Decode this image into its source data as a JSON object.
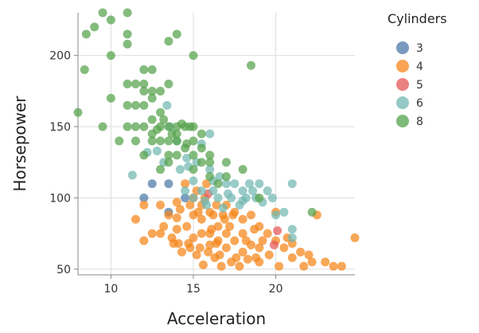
{
  "chart_data": {
    "type": "scatter",
    "title": "",
    "xlabel": "Acceleration",
    "ylabel": "Horsepower",
    "xlim": [
      8,
      24.8
    ],
    "ylim": [
      46,
      230
    ],
    "xticks": [
      10,
      15,
      20
    ],
    "yticks": [
      50,
      100,
      150,
      200
    ],
    "grid": true,
    "legend": {
      "title": "Cylinders",
      "position": "right"
    },
    "colors": {
      "3": "#4c78a8",
      "4": "#f58518",
      "5": "#e45756",
      "6": "#72b7b2",
      "8": "#54a24b"
    },
    "series": [
      {
        "name": "3",
        "color": "#4c78a8",
        "points": [
          [
            12.5,
            110
          ],
          [
            13.5,
            110
          ],
          [
            14.5,
            100
          ],
          [
            12,
            100
          ],
          [
            13.5,
            90
          ]
        ]
      },
      {
        "name": "4",
        "color": "#f58518",
        "points": [
          [
            11.5,
            85
          ],
          [
            12,
            70
          ],
          [
            12.5,
            75
          ],
          [
            13,
            75
          ],
          [
            13,
            95
          ],
          [
            13.5,
            88
          ],
          [
            14,
            97
          ],
          [
            14,
            86
          ],
          [
            14.2,
            92
          ],
          [
            14.5,
            110
          ],
          [
            14.6,
            80
          ],
          [
            14.8,
            95
          ],
          [
            15,
            100
          ],
          [
            15,
            88
          ],
          [
            15,
            72
          ],
          [
            15.2,
            105
          ],
          [
            15.3,
            90
          ],
          [
            15.5,
            95
          ],
          [
            15.5,
            75
          ],
          [
            15.5,
            85
          ],
          [
            15.7,
            100
          ],
          [
            15.8,
            110
          ],
          [
            16,
            90
          ],
          [
            16,
            75
          ],
          [
            16,
            67
          ],
          [
            16.2,
            88
          ],
          [
            16.4,
            95
          ],
          [
            16.5,
            80
          ],
          [
            16.5,
            70
          ],
          [
            16.6,
            60
          ],
          [
            16.8,
            88
          ],
          [
            17,
            95
          ],
          [
            17,
            75
          ],
          [
            17,
            65
          ],
          [
            17.2,
            80
          ],
          [
            17.5,
            90
          ],
          [
            17.5,
            70
          ],
          [
            17.6,
            58
          ],
          [
            18,
            85
          ],
          [
            18,
            75
          ],
          [
            18,
            62
          ],
          [
            18.2,
            70
          ],
          [
            18.5,
            88
          ],
          [
            18.5,
            67
          ],
          [
            18.7,
            78
          ],
          [
            19,
            80
          ],
          [
            19,
            65
          ],
          [
            19,
            55
          ],
          [
            19.2,
            70
          ],
          [
            19.5,
            75
          ],
          [
            19.6,
            60
          ],
          [
            20,
            90
          ],
          [
            20,
            70
          ],
          [
            20.2,
            52
          ],
          [
            20.5,
            65
          ],
          [
            20.7,
            72
          ],
          [
            21,
            68
          ],
          [
            21,
            58
          ],
          [
            21.5,
            62
          ],
          [
            21.7,
            52
          ],
          [
            22,
            60
          ],
          [
            22.2,
            55
          ],
          [
            22.5,
            88
          ],
          [
            23,
            55
          ],
          [
            23.5,
            52
          ],
          [
            24,
            52
          ],
          [
            24.8,
            72
          ],
          [
            12,
            95
          ],
          [
            13.2,
            80
          ],
          [
            13.8,
            68
          ],
          [
            14,
            78
          ],
          [
            14.3,
            62
          ],
          [
            14.7,
            68
          ],
          [
            15.4,
            65
          ],
          [
            15.9,
            62
          ],
          [
            16.3,
            58
          ],
          [
            16.7,
            52
          ],
          [
            17.3,
            55
          ],
          [
            17.8,
            52
          ],
          [
            18.3,
            57
          ],
          [
            18.8,
            58
          ],
          [
            14.8,
            65
          ],
          [
            15.2,
            60
          ],
          [
            16.1,
            78
          ],
          [
            16.9,
            85
          ],
          [
            17.4,
            88
          ],
          [
            13.7,
            72
          ],
          [
            14.1,
            68
          ],
          [
            15.6,
            53
          ],
          [
            16.4,
            68
          ]
        ]
      },
      {
        "name": "5",
        "color": "#e45756",
        "points": [
          [
            15.9,
            103
          ],
          [
            19.9,
            67
          ],
          [
            20.1,
            77
          ]
        ]
      },
      {
        "name": "6",
        "color": "#72b7b2",
        "points": [
          [
            11.3,
            116
          ],
          [
            12.2,
            132
          ],
          [
            12.8,
            133
          ],
          [
            13.2,
            125
          ],
          [
            13.4,
            165
          ],
          [
            13.6,
            150
          ],
          [
            14,
            140
          ],
          [
            14.2,
            120
          ],
          [
            14.5,
            105
          ],
          [
            14.6,
            128
          ],
          [
            15,
            100
          ],
          [
            15,
            112
          ],
          [
            15.2,
            125
          ],
          [
            15.5,
            105
          ],
          [
            15.7,
            98
          ],
          [
            16,
            120
          ],
          [
            16.2,
            112
          ],
          [
            16.5,
            100
          ],
          [
            16.8,
            93
          ],
          [
            17,
            110
          ],
          [
            17.3,
            100
          ],
          [
            17.5,
            110
          ],
          [
            17.8,
            95
          ],
          [
            18,
            105
          ],
          [
            18.2,
            100
          ],
          [
            18.4,
            110
          ],
          [
            18.6,
            105
          ],
          [
            18.8,
            100
          ],
          [
            19,
            110
          ],
          [
            19.2,
            97
          ],
          [
            19.5,
            105
          ],
          [
            19.8,
            100
          ],
          [
            20,
            88
          ],
          [
            20.5,
            90
          ],
          [
            21,
            110
          ],
          [
            21,
            78
          ],
          [
            21,
            72
          ],
          [
            16,
            145
          ],
          [
            15.5,
            138
          ],
          [
            14.7,
            122
          ],
          [
            16.6,
            115
          ],
          [
            17.1,
            103
          ],
          [
            18,
            98
          ],
          [
            16.2,
            105
          ],
          [
            15.8,
            95
          ]
        ]
      },
      {
        "name": "8",
        "color": "#54a24b",
        "points": [
          [
            8,
            160
          ],
          [
            8.4,
            190
          ],
          [
            8.5,
            215
          ],
          [
            9,
            220
          ],
          [
            9.5,
            150
          ],
          [
            9.5,
            230
          ],
          [
            10,
            225
          ],
          [
            10,
            200
          ],
          [
            10,
            170
          ],
          [
            10.5,
            140
          ],
          [
            11,
            230
          ],
          [
            11,
            215
          ],
          [
            11,
            208
          ],
          [
            11,
            180
          ],
          [
            11,
            165
          ],
          [
            11,
            150
          ],
          [
            11.5,
            180
          ],
          [
            11.5,
            165
          ],
          [
            11.5,
            150
          ],
          [
            11.5,
            140
          ],
          [
            12,
            190
          ],
          [
            12,
            180
          ],
          [
            12,
            175
          ],
          [
            12,
            165
          ],
          [
            12,
            150
          ],
          [
            12,
            130
          ],
          [
            12.5,
            190
          ],
          [
            12.5,
            175
          ],
          [
            12.5,
            170
          ],
          [
            12.5,
            155
          ],
          [
            12.5,
            145
          ],
          [
            12.5,
            140
          ],
          [
            13,
            175
          ],
          [
            13,
            160
          ],
          [
            13,
            150
          ],
          [
            13,
            140
          ],
          [
            13,
            120
          ],
          [
            13.5,
            210
          ],
          [
            13.5,
            180
          ],
          [
            13.5,
            150
          ],
          [
            13.5,
            140
          ],
          [
            13.5,
            130
          ],
          [
            13.5,
            125
          ],
          [
            14,
            215
          ],
          [
            14,
            150
          ],
          [
            14,
            145
          ],
          [
            14,
            140
          ],
          [
            14,
            130
          ],
          [
            14.5,
            150
          ],
          [
            14.5,
            135
          ],
          [
            15,
            200
          ],
          [
            15,
            150
          ],
          [
            15,
            140
          ],
          [
            15,
            130
          ],
          [
            15,
            120
          ],
          [
            15.5,
            145
          ],
          [
            15.5,
            135
          ],
          [
            15.5,
            125
          ],
          [
            16,
            130
          ],
          [
            16,
            125
          ],
          [
            16,
            115
          ],
          [
            16.5,
            110
          ],
          [
            17,
            125
          ],
          [
            17,
            115
          ],
          [
            18,
            120
          ],
          [
            18.5,
            193
          ],
          [
            19,
            100
          ],
          [
            22.2,
            90
          ],
          [
            13.2,
            155
          ],
          [
            12.8,
            148
          ],
          [
            14.3,
            152
          ],
          [
            13.7,
            145
          ],
          [
            14.6,
            138
          ],
          [
            14.8,
            150
          ]
        ]
      }
    ]
  }
}
